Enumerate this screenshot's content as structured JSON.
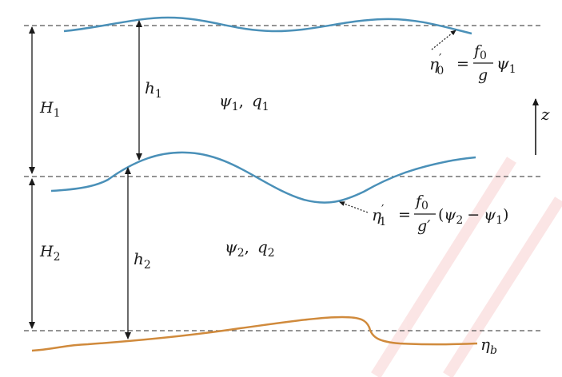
{
  "colors": {
    "layer_interface": "#4a90b8",
    "bottom_topography": "#d08a3c",
    "ink": "#1a1a1a",
    "dashed": "#555555",
    "watermark": "#e03030"
  },
  "labels": {
    "H1": {
      "base": "H",
      "sub": "1"
    },
    "H2": {
      "base": "H",
      "sub": "2"
    },
    "h1": {
      "base": "h",
      "sub": "1"
    },
    "h2": {
      "base": "h",
      "sub": "2"
    },
    "z": "z",
    "upper_layer": {
      "psi": "ψ",
      "psi_sub": "1",
      "sep": ",",
      "q": "q",
      "q_sub": "1"
    },
    "lower_layer": {
      "psi": "ψ",
      "psi_sub": "2",
      "sep": ",",
      "q": "q",
      "q_sub": "2"
    },
    "eta0": {
      "lhs": "η",
      "prime": "′",
      "lhs_sub": "0",
      "eq": "=",
      "num": "f",
      "num_sub": "0",
      "den": "g",
      "rhs": "ψ",
      "rhs_sub": "1"
    },
    "eta1": {
      "lhs": "η",
      "prime": "′",
      "lhs_sub": "1",
      "eq": "=",
      "num": "f",
      "num_sub": "0",
      "den": "g′",
      "open": "(",
      "a": "ψ",
      "a_sub": "2",
      "minus": "−",
      "b": "ψ",
      "b_sub": "1",
      "close": ")"
    },
    "etab": {
      "base": "η",
      "sub": "b"
    }
  }
}
